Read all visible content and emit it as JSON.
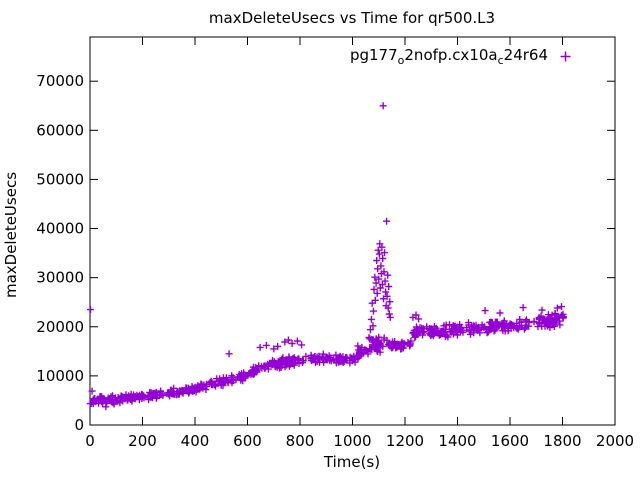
{
  "chart": {
    "title": "maxDeleteUsecs vs Time for qr500.L3",
    "xlabel": "Time(s)",
    "ylabel": "maxDeleteUsecs",
    "legend": {
      "label_plain": "pg177_o2nofp.cx10a_c24r64",
      "label_segments": [
        {
          "text": "pg177"
        },
        {
          "text": "o",
          "subscript": true
        },
        {
          "text": "2nofp.cx10a"
        },
        {
          "text": "c",
          "subscript": true
        },
        {
          "text": "24r64"
        }
      ],
      "position": "top-right"
    },
    "colors": {
      "series": "#9400d3",
      "axis": "#000000",
      "background": "#ffffff"
    }
  },
  "chart_data": {
    "type": "scatter",
    "series_name": "pg177_o2nofp.cx10a_c24r64",
    "marker": "plus",
    "color": "#9400d3",
    "grid": false,
    "legend_position": "top-right",
    "x_range": [
      0,
      2000
    ],
    "y_range": [
      0,
      79000
    ],
    "x_ticks": [
      0,
      200,
      400,
      600,
      800,
      1000,
      1200,
      1400,
      1600,
      1800,
      2000
    ],
    "y_ticks": [
      0,
      10000,
      20000,
      30000,
      40000,
      50000,
      60000,
      70000
    ],
    "seed": 1337,
    "band_segments": [
      [
        0,
        100,
        45,
        5000,
        5300,
        1100
      ],
      [
        100,
        250,
        60,
        5300,
        6100,
        950
      ],
      [
        250,
        400,
        60,
        6100,
        7400,
        950
      ],
      [
        400,
        550,
        60,
        7400,
        9400,
        1000
      ],
      [
        550,
        700,
        60,
        9400,
        12400,
        1100
      ],
      [
        700,
        860,
        65,
        12400,
        13700,
        1200
      ],
      [
        860,
        1000,
        55,
        13600,
        13200,
        1000
      ],
      [
        1000,
        1060,
        28,
        13600,
        15200,
        1100
      ],
      [
        1060,
        1150,
        45,
        16200,
        16800,
        1800
      ],
      [
        1150,
        1225,
        32,
        16000,
        17000,
        1300
      ],
      [
        1225,
        1330,
        45,
        18700,
        19300,
        1400
      ],
      [
        1330,
        1510,
        70,
        19100,
        19900,
        1500
      ],
      [
        1510,
        1690,
        70,
        19800,
        20700,
        1500
      ],
      [
        1690,
        1805,
        60,
        20700,
        21700,
        1700
      ]
    ],
    "spike_points": [
      [
        1063,
        17800
      ],
      [
        1068,
        19400
      ],
      [
        1072,
        21500
      ],
      [
        1075,
        24800
      ],
      [
        1078,
        20200
      ],
      [
        1080,
        23200
      ],
      [
        1082,
        27600
      ],
      [
        1085,
        30100
      ],
      [
        1087,
        25400
      ],
      [
        1090,
        28900
      ],
      [
        1092,
        33500
      ],
      [
        1094,
        26800
      ],
      [
        1096,
        31800
      ],
      [
        1098,
        35600
      ],
      [
        1100,
        29700
      ],
      [
        1102,
        34800
      ],
      [
        1104,
        36900
      ],
      [
        1106,
        27900
      ],
      [
        1108,
        32400
      ],
      [
        1110,
        30800
      ],
      [
        1112,
        36200
      ],
      [
        1114,
        28600
      ],
      [
        1115,
        33900
      ],
      [
        1117,
        65000
      ],
      [
        1118,
        25700
      ],
      [
        1120,
        31200
      ],
      [
        1122,
        35100
      ],
      [
        1124,
        29300
      ],
      [
        1126,
        27100
      ],
      [
        1128,
        24300
      ],
      [
        1130,
        41500
      ],
      [
        1132,
        26200
      ],
      [
        1134,
        30500
      ],
      [
        1136,
        23800
      ],
      [
        1138,
        28200
      ],
      [
        1140,
        22600
      ],
      [
        1142,
        25100
      ],
      [
        1144,
        21900
      ]
    ],
    "outlier_points": [
      [
        2,
        23500
      ],
      [
        8,
        6900
      ],
      [
        60,
        3700
      ],
      [
        530,
        14500
      ],
      [
        648,
        15800
      ],
      [
        672,
        16200
      ],
      [
        700,
        15500
      ],
      [
        715,
        16000
      ],
      [
        742,
        16900
      ],
      [
        756,
        17300
      ],
      [
        770,
        16600
      ],
      [
        790,
        17100
      ],
      [
        806,
        16300
      ],
      [
        1020,
        16100
      ],
      [
        1036,
        15800
      ],
      [
        1230,
        21900
      ],
      [
        1242,
        22400
      ],
      [
        1252,
        21600
      ],
      [
        1505,
        23300
      ],
      [
        1562,
        22800
      ],
      [
        1650,
        23900
      ],
      [
        1722,
        23400
      ],
      [
        1780,
        23800
      ],
      [
        1796,
        24100
      ]
    ]
  }
}
